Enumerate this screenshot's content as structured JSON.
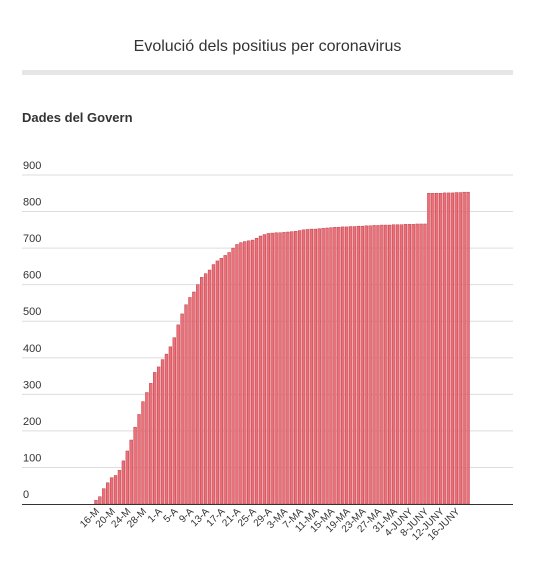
{
  "title": "Evolució dels positius per coronavirus",
  "subtitle": "Dades del Govern",
  "colors": {
    "bar_fill": "#e8717a",
    "bar_stroke": "#c43a45",
    "grid": "#dddddd",
    "axis": "#333333"
  },
  "chart_data": {
    "type": "bar",
    "title": "Evolució dels positius per coronavirus",
    "subtitle": "Dades del Govern",
    "xlabel": "",
    "ylabel": "",
    "ylim": [
      0,
      900
    ],
    "yticks": [
      0,
      100,
      200,
      300,
      400,
      500,
      600,
      700,
      800,
      900
    ],
    "grid": true,
    "legend": "none",
    "tick_labels": [
      "16-M",
      "20-M",
      "24-M",
      "28-M",
      "1-A",
      "5-A",
      "9-A",
      "13-A",
      "17-A",
      "21-A",
      "25-A",
      "29-A",
      "3-MA",
      "7-MA",
      "11-MA",
      "15-MA",
      "19-MA",
      "23-MA",
      "27-MA",
      "31-MA",
      "4-JUNY",
      "8-JUNY",
      "12-JUNY",
      "16-JUNY"
    ],
    "values": [
      10,
      20,
      42,
      58,
      72,
      78,
      92,
      118,
      145,
      175,
      210,
      245,
      280,
      305,
      330,
      360,
      375,
      395,
      410,
      430,
      455,
      490,
      520,
      545,
      565,
      580,
      600,
      620,
      630,
      640,
      655,
      665,
      672,
      680,
      688,
      700,
      710,
      715,
      718,
      720,
      722,
      727,
      733,
      737,
      740,
      741,
      742,
      742,
      743,
      744,
      745,
      746,
      748,
      750,
      751,
      752,
      752,
      753,
      754,
      755,
      756,
      757,
      757,
      758,
      758,
      759,
      759,
      760,
      760,
      761,
      761,
      762,
      762,
      763,
      763,
      763,
      764,
      764,
      764,
      765,
      765,
      765,
      766,
      766,
      766,
      850,
      850,
      850,
      850,
      851,
      851,
      851,
      852,
      852,
      853,
      853
    ]
  }
}
